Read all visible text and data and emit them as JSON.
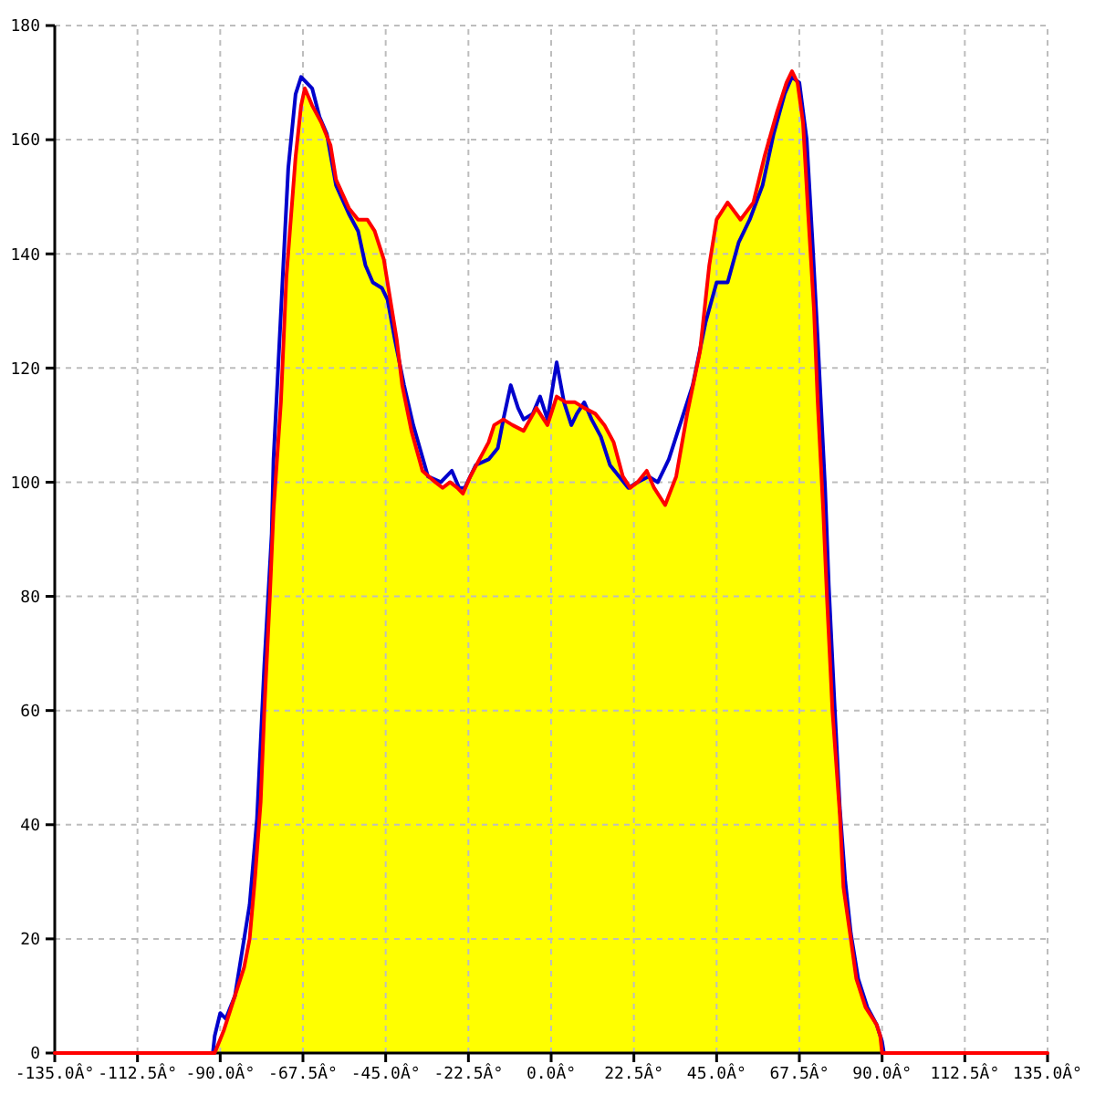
{
  "chart_data": {
    "type": "line",
    "xlim": [
      -135,
      135
    ],
    "ylim": [
      0,
      180
    ],
    "xticks": [
      {
        "value": -135,
        "label": "-135.0Â°"
      },
      {
        "value": -112.5,
        "label": "-112.5Â°"
      },
      {
        "value": -90,
        "label": "-90.0Â°"
      },
      {
        "value": -67.5,
        "label": "-67.5Â°"
      },
      {
        "value": -45,
        "label": "-45.0Â°"
      },
      {
        "value": -22.5,
        "label": "-22.5Â°"
      },
      {
        "value": 0,
        "label": "0.0Â°"
      },
      {
        "value": 22.5,
        "label": "22.5Â°"
      },
      {
        "value": 45,
        "label": "45.0Â°"
      },
      {
        "value": 67.5,
        "label": "67.5Â°"
      },
      {
        "value": 90,
        "label": "90.0Â°"
      },
      {
        "value": 112.5,
        "label": "112.5Â°"
      },
      {
        "value": 135,
        "label": "135.0Â°"
      }
    ],
    "yticks": [
      0,
      20,
      40,
      60,
      80,
      100,
      120,
      140,
      160,
      180
    ],
    "grid": true,
    "series": [
      {
        "type": "area",
        "color": "#ffff00",
        "x": [
          -91.5,
          -89,
          -86,
          -83.5,
          -82,
          -80.5,
          -79,
          -78,
          -76.5,
          -75.5,
          -73.5,
          -72,
          -69.5,
          -68,
          -67,
          -65,
          -62.5,
          -60,
          -58.5,
          -55,
          -52.5,
          -50,
          -48,
          -45.5,
          -44,
          -42,
          -40.5,
          -38,
          -35,
          -31.5,
          -29.5,
          -27.5,
          -25.5,
          -24,
          -22,
          -19.5,
          -17,
          -15.5,
          -13,
          -10.5,
          -7.5,
          -4,
          -1,
          1.5,
          4,
          6.5,
          9,
          12,
          14.5,
          17,
          19.5,
          21.5,
          23.5,
          26,
          28,
          31,
          34,
          37,
          40.5,
          43,
          45,
          48,
          51.5,
          55,
          58,
          61.5,
          64,
          65.5,
          67,
          68.5,
          70,
          71.5,
          72.5,
          74,
          75,
          76.5,
          78.5,
          79.5,
          81.5,
          83,
          85.5,
          88.5,
          89.5,
          90
        ],
        "values": [
          0,
          4,
          10,
          15,
          20,
          31,
          44,
          60,
          80,
          95,
          114,
          136,
          157,
          166,
          169,
          166,
          163,
          159,
          153,
          148,
          146,
          146,
          144,
          139,
          133,
          125,
          117,
          109,
          102,
          100,
          99,
          100,
          99,
          98,
          101,
          104,
          107,
          110,
          111,
          110,
          109,
          113,
          110,
          115,
          114,
          114,
          113,
          112,
          110,
          107,
          101,
          99,
          100,
          102,
          99,
          96,
          101,
          112,
          123,
          138,
          146,
          149,
          146,
          149,
          157,
          165,
          170,
          172,
          170,
          163,
          146,
          130,
          114,
          95,
          80,
          60,
          42,
          29,
          20,
          13,
          8,
          5,
          3,
          0
        ]
      },
      {
        "color": "#0000cc",
        "x": [
          -92,
          -91.5,
          -90,
          -88.5,
          -86,
          -82,
          -80,
          -78,
          -76,
          -75.5,
          -73,
          -71.5,
          -69.5,
          -68,
          -65,
          -63,
          -61,
          -58.5,
          -55,
          -52.5,
          -50.5,
          -48.5,
          -46,
          -44.5,
          -42.5,
          -40,
          -37.5,
          -33.5,
          -30,
          -27,
          -25,
          -23.5,
          -20.5,
          -17,
          -14.5,
          -13,
          -11,
          -9,
          -7.5,
          -5,
          -3,
          -1,
          1.5,
          3.5,
          5.5,
          7,
          9,
          11,
          13.5,
          16,
          18.5,
          21,
          23.5,
          26.5,
          29,
          32,
          35.5,
          38.5,
          42,
          45,
          48,
          51,
          54,
          57.5,
          60.5,
          63.5,
          65.5,
          67.5,
          69.5,
          71,
          72.5,
          74.5,
          75.5,
          77,
          78.5,
          80,
          81.5,
          83.5,
          86,
          88.5,
          90,
          90.5
        ],
        "values": [
          0,
          3,
          7,
          6,
          10,
          26,
          41,
          68,
          91,
          104,
          136,
          155,
          168,
          171,
          169,
          164,
          161,
          152,
          147,
          144,
          138,
          135,
          134,
          132,
          125,
          117,
          110,
          101,
          100,
          102,
          99,
          99,
          103,
          104,
          106,
          111,
          117,
          113,
          111,
          112,
          115,
          111,
          121,
          114,
          110,
          112,
          114,
          111,
          108,
          103,
          101,
          99,
          100,
          101,
          100,
          104,
          111,
          117,
          128,
          135,
          135,
          142,
          146,
          152,
          161,
          168,
          171,
          170,
          160,
          143,
          125,
          99,
          82,
          62,
          43,
          30,
          21,
          13,
          8,
          5,
          2,
          0
        ]
      },
      {
        "color": "#ff0000",
        "x": [
          -135,
          -91.5,
          -89,
          -86,
          -83.5,
          -82,
          -80.5,
          -79,
          -78,
          -76.5,
          -75.5,
          -73.5,
          -72,
          -69.5,
          -68,
          -67,
          -65,
          -62.5,
          -60,
          -58.5,
          -55,
          -52.5,
          -50,
          -48,
          -45.5,
          -44,
          -42,
          -40.5,
          -38,
          -35,
          -31.5,
          -29.5,
          -27.5,
          -25.5,
          -24,
          -22,
          -19.5,
          -17,
          -15.5,
          -13,
          -10.5,
          -7.5,
          -4,
          -1,
          1.5,
          4,
          6.5,
          9,
          12,
          14.5,
          17,
          19.5,
          21.5,
          23.5,
          26,
          28,
          31,
          34,
          37,
          40.5,
          43,
          45,
          48,
          51.5,
          55,
          58,
          61.5,
          64,
          65.5,
          67,
          68.5,
          70,
          71.5,
          72.5,
          74,
          75,
          76.5,
          78.5,
          79.5,
          81.5,
          83,
          85.5,
          88.5,
          89.5,
          90,
          135
        ],
        "values": [
          0,
          0,
          4,
          10,
          15,
          20,
          31,
          44,
          60,
          80,
          95,
          114,
          136,
          157,
          166,
          169,
          166,
          163,
          159,
          153,
          148,
          146,
          146,
          144,
          139,
          133,
          125,
          117,
          109,
          102,
          100,
          99,
          100,
          99,
          98,
          101,
          104,
          107,
          110,
          111,
          110,
          109,
          113,
          110,
          115,
          114,
          114,
          113,
          112,
          110,
          107,
          101,
          99,
          100,
          102,
          99,
          96,
          101,
          112,
          123,
          138,
          146,
          149,
          146,
          149,
          157,
          165,
          170,
          172,
          170,
          163,
          146,
          130,
          114,
          95,
          80,
          60,
          42,
          29,
          20,
          13,
          8,
          5,
          3,
          0,
          0
        ]
      }
    ]
  }
}
